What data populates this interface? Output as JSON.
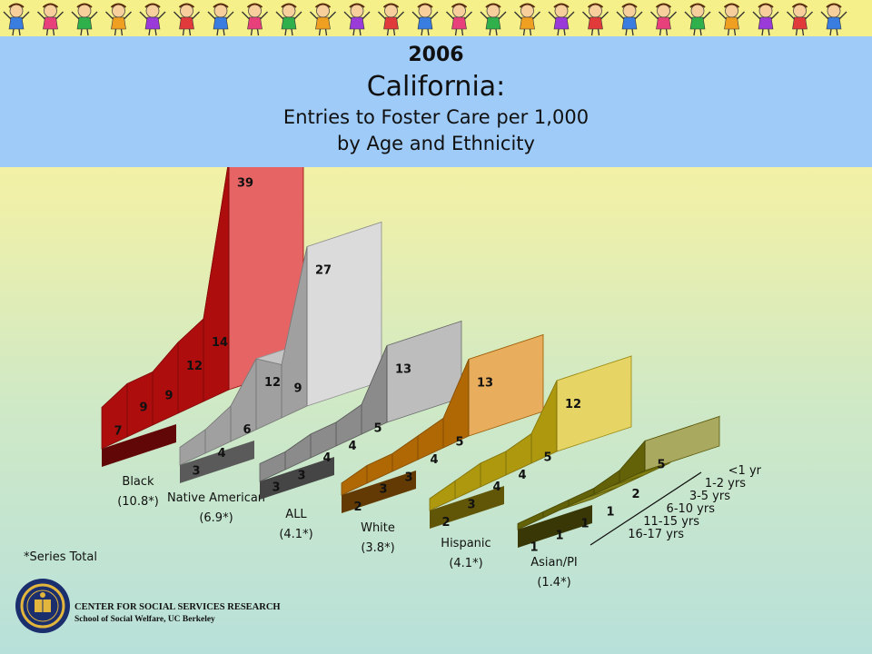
{
  "header": {
    "year": "2006",
    "state": "California:",
    "line1": "Entries to Foster Care per 1,000",
    "line2": "by Age and Ethnicity"
  },
  "chart_data": {
    "type": "3d-ribbon",
    "age_groups": [
      "<1 yr",
      "1-2 yrs",
      "3-5 yrs",
      "6-10 yrs",
      "11-15 yrs",
      "16-17 yrs"
    ],
    "series": [
      {
        "name": "Black",
        "total_label": "(10.8*)",
        "values": [
          39,
          14,
          12,
          9,
          9,
          7
        ],
        "color": "#d91010"
      },
      {
        "name": "Native American",
        "total_label": "(6.9*)",
        "values": [
          27,
          9,
          12,
          6,
          4,
          3
        ],
        "color": "#c8c8c8"
      },
      {
        "name": "ALL",
        "total_label": "(4.1*)",
        "values": [
          13,
          5,
          4,
          4,
          3,
          3
        ],
        "color": "#9a9a9a"
      },
      {
        "name": "White",
        "total_label": "(3.8*)",
        "values": [
          13,
          5,
          4,
          3,
          3,
          2
        ],
        "color": "#dc8206"
      },
      {
        "name": "Hispanic",
        "total_label": "(4.1*)",
        "values": [
          12,
          5,
          4,
          4,
          3,
          2
        ],
        "color": "#d8be12"
      },
      {
        "name": "Asian/PI",
        "total_label": "(1.4*)",
        "values": [
          5,
          2,
          1,
          1,
          1,
          1
        ],
        "color": "#7c7a0a"
      }
    ],
    "footnote": "*Series Total"
  },
  "footer": {
    "org": "CENTER FOR SOCIAL SERVICES RESEARCH",
    "sub": "School of Social Welfare, UC Berkeley"
  }
}
